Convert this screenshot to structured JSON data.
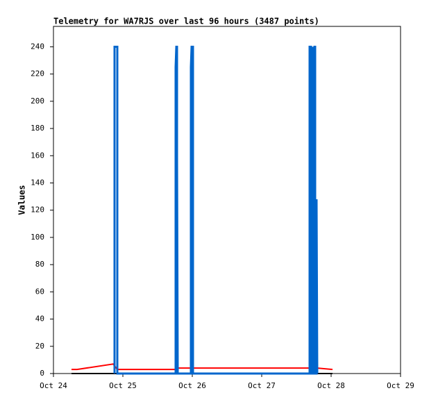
{
  "chart_data": {
    "type": "line",
    "title": "Telemetry for WA7RJS over last 96 hours (3487 points)",
    "y_label": "Values",
    "xlim": [
      24,
      29
    ],
    "xticks": [
      {
        "value": 24,
        "label": "Oct 24"
      },
      {
        "value": 25,
        "label": "Oct 25"
      },
      {
        "value": 26,
        "label": "Oct 26"
      },
      {
        "value": 27,
        "label": "Oct 27"
      },
      {
        "value": 28,
        "label": "Oct 28"
      },
      {
        "value": 29,
        "label": "Oct 29"
      }
    ],
    "ylim": [
      0,
      255
    ],
    "yticks": [
      0,
      20,
      40,
      60,
      80,
      100,
      120,
      140,
      160,
      180,
      200,
      220,
      240
    ],
    "series": [
      {
        "color": "#000000",
        "x": [
          24.26,
          28.02
        ],
        "values": [
          0,
          0
        ]
      },
      {
        "color": "#ff0000",
        "x": [
          24.26,
          24.34,
          24.86,
          24.92,
          25.76,
          25.8,
          27.8,
          28.02
        ],
        "values": [
          3,
          3,
          7,
          3,
          3,
          4,
          4,
          3
        ]
      },
      {
        "color": "#0066cc",
        "x": [
          24.88,
          24.88,
          24.9,
          24.92,
          24.92,
          25.76,
          25.76,
          25.77,
          25.78,
          25.78,
          25.79,
          25.98,
          25.98,
          25.99,
          26.01,
          26.01,
          27.69,
          27.69,
          27.71,
          27.71,
          27.74,
          27.74,
          27.75,
          27.76,
          27.77,
          27.77,
          27.79,
          27.79,
          27.8
        ],
        "values": [
          0,
          240,
          240,
          240,
          0,
          0,
          225,
          240,
          240,
          160,
          0,
          0,
          225,
          240,
          240,
          0,
          0,
          240,
          240,
          0,
          0,
          240,
          225,
          240,
          240,
          0,
          0,
          128,
          0
        ]
      }
    ]
  }
}
